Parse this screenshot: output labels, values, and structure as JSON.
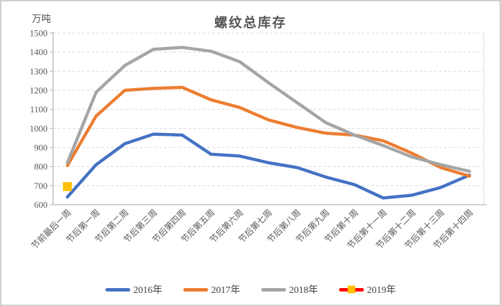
{
  "chart_data": {
    "type": "line",
    "title": "螺纹总库存",
    "ylabel_unit": "万吨",
    "ylim": [
      600,
      1500
    ],
    "ytick_step": 100,
    "grid": true,
    "legend_position": "bottom",
    "categories": [
      "节前最后一周",
      "节后第一周",
      "节后第二周",
      "节后第三周",
      "节后第四周",
      "节后第五周",
      "节后第六周",
      "节后第七周",
      "节后第八周",
      "节后第九周",
      "节后第十周",
      "节后第十一周",
      "节后第十二周",
      "节后第十三周",
      "节后第十四周"
    ],
    "series": [
      {
        "name": "2016年",
        "color": "#4472C4",
        "marker": "none",
        "values": [
          640,
          810,
          920,
          970,
          965,
          865,
          855,
          820,
          795,
          745,
          705,
          635,
          650,
          690,
          755
        ]
      },
      {
        "name": "2017年",
        "color": "#ED7D31",
        "marker": "none",
        "values": [
          805,
          1065,
          1200,
          1210,
          1215,
          1150,
          1110,
          1045,
          1005,
          975,
          965,
          935,
          870,
          795,
          750
        ]
      },
      {
        "name": "2018年",
        "color": "#A5A5A5",
        "marker": "none",
        "values": [
          820,
          1190,
          1330,
          1415,
          1425,
          1405,
          1350,
          1240,
          1135,
          1030,
          965,
          910,
          850,
          810,
          775
        ]
      },
      {
        "name": "2019年",
        "color": "#FF0000",
        "marker": "square",
        "marker_color": "#FFC000",
        "values": [
          695,
          null,
          null,
          null,
          null,
          null,
          null,
          null,
          null,
          null,
          null,
          null,
          null,
          null,
          null
        ]
      }
    ]
  },
  "colors": {
    "grid": "#D9D9D9",
    "axis": "#BFBFBF",
    "tick_text": "#595959",
    "title_text": "#555555",
    "border": "#CFCFCF"
  }
}
